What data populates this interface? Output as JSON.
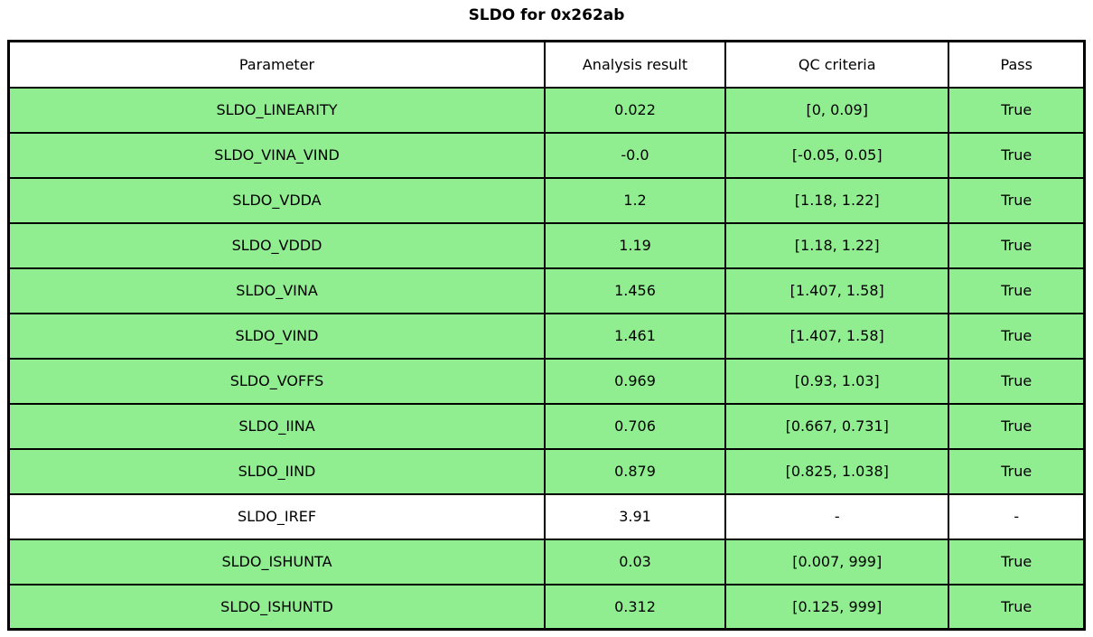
{
  "title": "SLDO for 0x262ab",
  "colors": {
    "pass_row": "#90EE90",
    "neutral_row": "#FFFFFF",
    "border": "#000000",
    "text": "#000000",
    "background": "#FFFFFF"
  },
  "chart_data": {
    "type": "table",
    "title": "SLDO for 0x262ab",
    "columns": [
      "Parameter",
      "Analysis result",
      "QC criteria",
      "Pass"
    ],
    "layout": {
      "column_widths_pct": [
        50.0,
        16.75,
        20.77,
        12.48
      ],
      "header_background": "#FFFFFF",
      "pass_row_background": "#90EE90",
      "grid": "on"
    },
    "rows": [
      {
        "parameter": "SLDO_LINEARITY",
        "analysis_result": "0.022",
        "qc_criteria": "[0, 0.09]",
        "pass": "True",
        "highlighted": true
      },
      {
        "parameter": "SLDO_VINA_VIND",
        "analysis_result": "-0.0",
        "qc_criteria": "[-0.05, 0.05]",
        "pass": "True",
        "highlighted": true
      },
      {
        "parameter": "SLDO_VDDA",
        "analysis_result": "1.2",
        "qc_criteria": "[1.18, 1.22]",
        "pass": "True",
        "highlighted": true
      },
      {
        "parameter": "SLDO_VDDD",
        "analysis_result": "1.19",
        "qc_criteria": "[1.18, 1.22]",
        "pass": "True",
        "highlighted": true
      },
      {
        "parameter": "SLDO_VINA",
        "analysis_result": "1.456",
        "qc_criteria": "[1.407, 1.58]",
        "pass": "True",
        "highlighted": true
      },
      {
        "parameter": "SLDO_VIND",
        "analysis_result": "1.461",
        "qc_criteria": "[1.407, 1.58]",
        "pass": "True",
        "highlighted": true
      },
      {
        "parameter": "SLDO_VOFFS",
        "analysis_result": "0.969",
        "qc_criteria": "[0.93, 1.03]",
        "pass": "True",
        "highlighted": true
      },
      {
        "parameter": "SLDO_IINA",
        "analysis_result": "0.706",
        "qc_criteria": "[0.667, 0.731]",
        "pass": "True",
        "highlighted": true
      },
      {
        "parameter": "SLDO_IIND",
        "analysis_result": "0.879",
        "qc_criteria": "[0.825, 1.038]",
        "pass": "True",
        "highlighted": true
      },
      {
        "parameter": "SLDO_IREF",
        "analysis_result": "3.91",
        "qc_criteria": "-",
        "pass": "-",
        "highlighted": false
      },
      {
        "parameter": "SLDO_ISHUNTA",
        "analysis_result": "0.03",
        "qc_criteria": "[0.007, 999]",
        "pass": "True",
        "highlighted": true
      },
      {
        "parameter": "SLDO_ISHUNTD",
        "analysis_result": "0.312",
        "qc_criteria": "[0.125, 999]",
        "pass": "True",
        "highlighted": true
      }
    ]
  }
}
